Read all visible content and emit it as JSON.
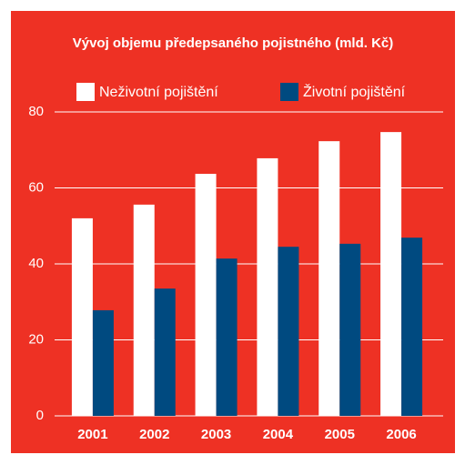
{
  "chart_data": {
    "type": "bar",
    "title": "Vývoj objemu předepsaného pojistného (mld. Kč)",
    "categories": [
      "2001",
      "2002",
      "2003",
      "2004",
      "2005",
      "2006"
    ],
    "series": [
      {
        "name": "Neživotní pojištění",
        "color": "#ffffff",
        "values": [
          52,
          55.6,
          63.7,
          67.8,
          72.3,
          74.7
        ]
      },
      {
        "name": "Životní pojištění",
        "color": "#004a80",
        "values": [
          27.8,
          33.5,
          41.4,
          44.5,
          45.3,
          46.9
        ]
      }
    ],
    "ylim": [
      0,
      80
    ],
    "yticks": [
      0,
      20,
      40,
      60,
      80
    ],
    "grid": true,
    "background": "#ee3124"
  }
}
